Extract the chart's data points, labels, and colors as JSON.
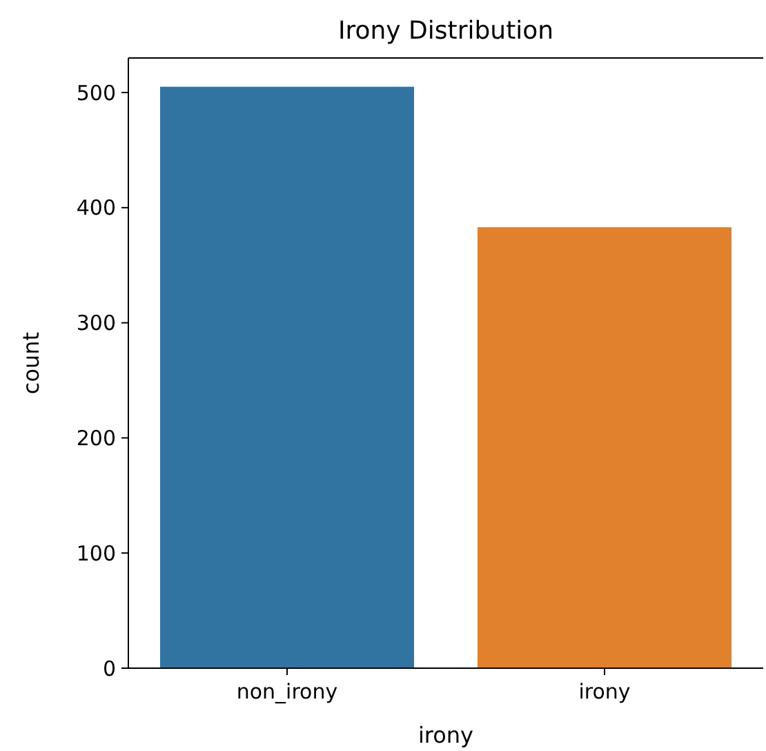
{
  "chart_data": {
    "type": "bar",
    "title": "Irony Distribution",
    "xlabel": "irony",
    "ylabel": "count",
    "categories": [
      "non_irony",
      "irony"
    ],
    "values": [
      505,
      383
    ],
    "colors": [
      "#3274a1",
      "#e1812c"
    ],
    "ylim": [
      0,
      530
    ],
    "yticks": [
      0,
      100,
      200,
      300,
      400,
      500
    ],
    "grid": false
  }
}
